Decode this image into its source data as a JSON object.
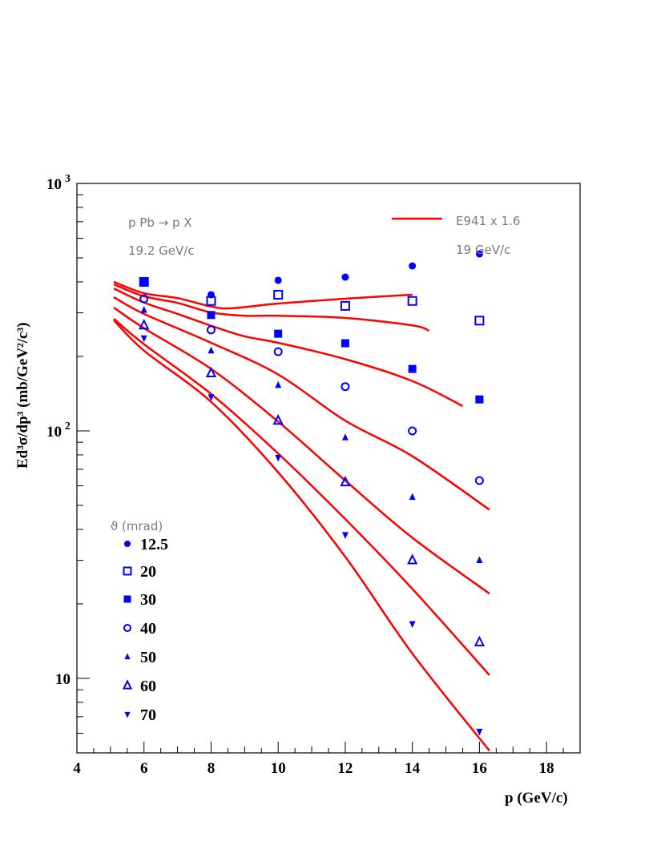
{
  "chart_data": {
    "type": "scatter",
    "xlabel": "p (GeV/c)",
    "ylabel": "Ed³σ/dp³  (mb/GeV²/c³)",
    "xlim": [
      4,
      19
    ],
    "ylim": [
      5,
      1000
    ],
    "yscale": "log",
    "grid": false,
    "x_ticks": [
      "4",
      "6",
      "8",
      "10",
      "12",
      "14",
      "16",
      "18"
    ],
    "y_ticks": [
      {
        "value": 1000,
        "base": "10",
        "exp": "3"
      },
      {
        "value": 100,
        "base": "10",
        "exp": "2"
      },
      {
        "value": 10,
        "base": "10",
        "exp": ""
      }
    ],
    "annotations": {
      "reaction": "p Pb → p X",
      "beam": "19.2 GeV/c",
      "model_label": "E941 x 1.6",
      "model_beam": "19 GeV/c"
    },
    "legend_title": "ϑ (mrad)",
    "legend_placement": "bottom-left",
    "marker_color": "#0000ff",
    "curve_color": "#ff0000",
    "series": [
      {
        "name": "12.5",
        "marker": "filled-circle",
        "x": [
          8,
          10,
          12,
          14,
          16
        ],
        "y": [
          355,
          406,
          418,
          464,
          519
        ]
      },
      {
        "name": "20",
        "marker": "open-square",
        "x": [
          6,
          8,
          10,
          12,
          14,
          16
        ],
        "y": [
          400,
          335,
          355,
          320,
          335,
          279
        ]
      },
      {
        "name": "30",
        "marker": "filled-square",
        "x": [
          6,
          8,
          10,
          12,
          14,
          16
        ],
        "y": [
          400,
          294,
          247,
          226,
          178,
          134
        ]
      },
      {
        "name": "40",
        "marker": "open-circle",
        "x": [
          6,
          8,
          10,
          12,
          14,
          16
        ],
        "y": [
          342,
          256,
          209,
          151,
          100,
          63
        ]
      },
      {
        "name": "50",
        "marker": "filled-triangle-up",
        "x": [
          6,
          8,
          10,
          12,
          14,
          16
        ],
        "y": [
          308,
          211,
          153,
          94,
          54,
          30
        ]
      },
      {
        "name": "60",
        "marker": "open-triangle-up",
        "x": [
          6,
          8,
          10,
          12,
          14,
          16
        ],
        "y": [
          267,
          171,
          110,
          62,
          30,
          14
        ]
      },
      {
        "name": "70",
        "marker": "filled-triangle-down",
        "x": [
          6,
          8,
          10,
          12,
          14,
          16
        ],
        "y": [
          237,
          137,
          78,
          38,
          16.6,
          6.1
        ]
      }
    ],
    "curves": [
      {
        "x": [
          5.1,
          6,
          7,
          8,
          8.6,
          10,
          12,
          14
        ],
        "y": [
          400,
          360,
          344,
          318,
          313,
          327,
          342,
          355
        ]
      },
      {
        "x": [
          5.1,
          6,
          7,
          8,
          9,
          10,
          12,
          14,
          14.5
        ],
        "y": [
          391,
          350,
          329,
          301,
          292,
          292,
          286,
          267,
          254
        ]
      },
      {
        "x": [
          5.1,
          6,
          7,
          8,
          9,
          10,
          12,
          14,
          15.5
        ],
        "y": [
          376,
          330,
          297,
          266,
          241,
          227,
          195,
          159,
          126
        ]
      },
      {
        "x": [
          5.1,
          6,
          8,
          10,
          12,
          14,
          16.3
        ],
        "y": [
          347,
          297,
          227,
          169,
          110,
          79,
          48
        ]
      },
      {
        "x": [
          5.1,
          6,
          8,
          10,
          12,
          14,
          16.3
        ],
        "y": [
          315,
          260,
          178,
          109,
          63,
          37,
          22
        ]
      },
      {
        "x": [
          5.1,
          6,
          8,
          10,
          12,
          14,
          16.3
        ],
        "y": [
          284,
          224,
          141,
          81,
          44,
          23,
          10.3
        ]
      },
      {
        "x": [
          5.1,
          6,
          8,
          10,
          12,
          14,
          16.3
        ],
        "y": [
          280,
          211,
          131,
          68,
          31,
          12.6,
          5.1
        ]
      }
    ]
  }
}
